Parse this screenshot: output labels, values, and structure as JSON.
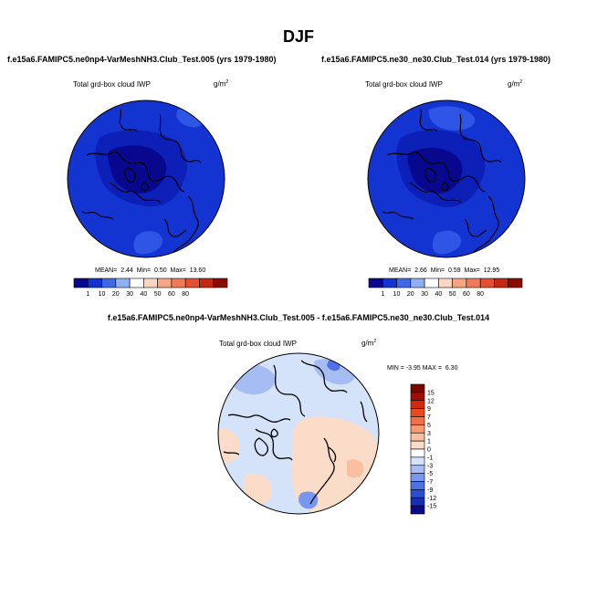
{
  "page": {
    "title": "DJF"
  },
  "colors": {
    "blue_scale": [
      "#08088f",
      "#0c1fb6",
      "#1434d2",
      "#2f55e6",
      "#6a8ff0",
      "#c9daf8"
    ],
    "diff_scale": [
      "#0a0a8a",
      "#1a2fb0",
      "#2a4ed0",
      "#4c72e6",
      "#7798ee",
      "#a6bdf4",
      "#d4e3fa",
      "#ffffff",
      "#fbdcc8",
      "#f9c0a0",
      "#f69a72",
      "#f27046",
      "#e94a22",
      "#d22a0e",
      "#9f0d05"
    ],
    "land_line": "#000000"
  },
  "chart_data": [
    {
      "type": "polar-map",
      "name": "top-left",
      "subtitle": "f.e15a6.FAMIPC5.ne0np4-VarMeshNH3.Club_Test.005 (yrs 1979-1980)",
      "field_label": "Total grd-box cloud IWP",
      "units_base": "g/m",
      "units_exp": "2",
      "stats": {
        "mean_label": "MEAN=",
        "mean": "2.44",
        "min_label": "Min=",
        "min": "0.50",
        "max_label": "Max=",
        "max": "13.60"
      },
      "colorbar": {
        "labels": [
          "1",
          "10",
          "20",
          "30",
          "40",
          "50",
          "60",
          "80"
        ],
        "colors": [
          "#08088f",
          "#1434d2",
          "#4169e6",
          "#8fb0f2",
          "#ffffff",
          "#fbd6c0",
          "#f6a585",
          "#f07b58",
          "#e35030",
          "#c32812",
          "#8a0b04"
        ]
      }
    },
    {
      "type": "polar-map",
      "name": "top-right",
      "subtitle": "f.e15a6.FAMIPC5.ne30_ne30.Club_Test.014 (yrs 1979-1980)",
      "field_label": "Total grd-box cloud IWP",
      "units_base": "g/m",
      "units_exp": "2",
      "stats": {
        "mean_label": "MEAN=",
        "mean": "2.66",
        "min_label": "Min=",
        "min": "0.59",
        "max_label": "Max=",
        "max": "12.95"
      },
      "colorbar": {
        "labels": [
          "1",
          "10",
          "20",
          "30",
          "40",
          "50",
          "60",
          "80"
        ],
        "colors": [
          "#08088f",
          "#1434d2",
          "#4169e6",
          "#8fb0f2",
          "#ffffff",
          "#fbd6c0",
          "#f6a585",
          "#f07b58",
          "#e35030",
          "#c32812",
          "#8a0b04"
        ]
      }
    },
    {
      "type": "polar-map",
      "name": "bottom-diff",
      "subtitle": "f.e15a6.FAMIPC5.ne0np4-VarMeshNH3.Club_Test.005 - f.e15a6.FAMIPC5.ne30_ne30.Club_Test.014",
      "field_label": "Total grd-box cloud IWP",
      "units_base": "g/m",
      "units_exp": "2",
      "stats": {
        "min_label": "MIN =",
        "min": "-3.95",
        "max_label": "MAX =",
        "max": "6.30"
      },
      "colorbar": {
        "labels": [
          "15",
          "12",
          "9",
          "7",
          "5",
          "3",
          "1",
          "0",
          "-1",
          "-3",
          "-5",
          "-7",
          "-9",
          "-12",
          "-15"
        ]
      }
    }
  ]
}
